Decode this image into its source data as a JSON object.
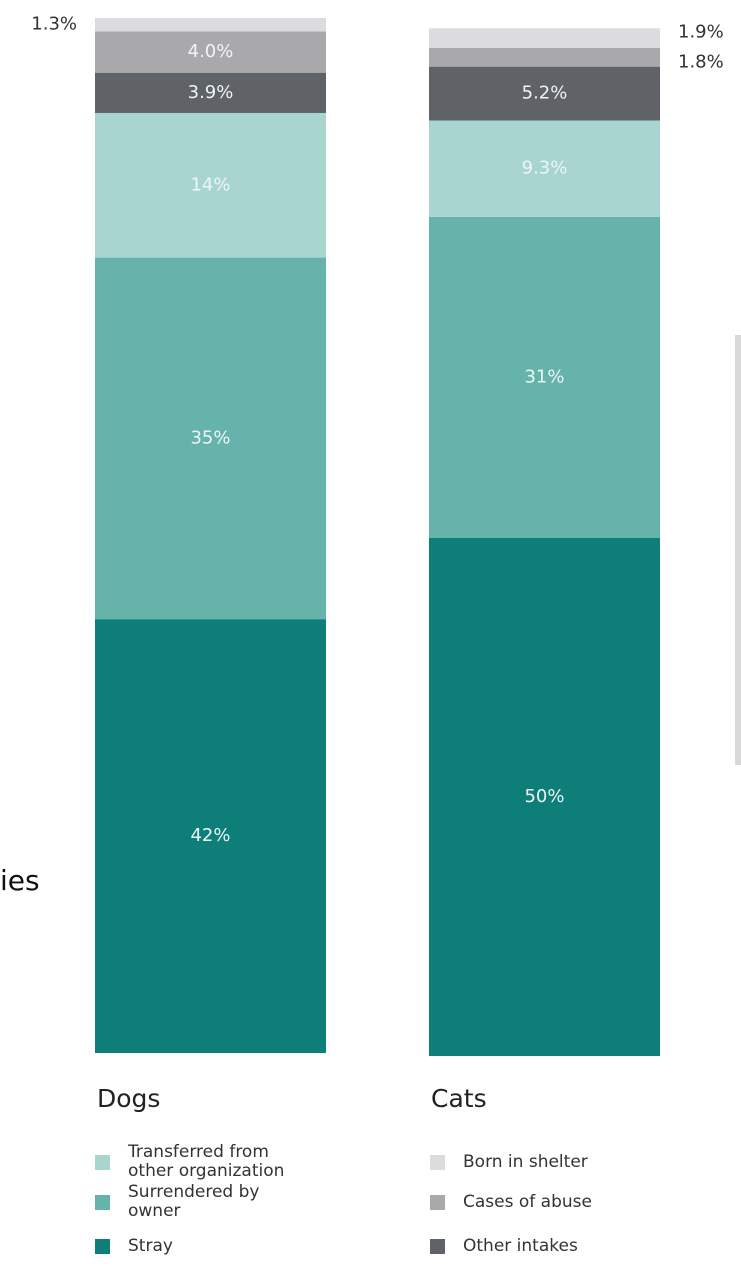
{
  "chart_data": {
    "type": "stacked-bar",
    "categories": [
      "Dogs",
      "Cats"
    ],
    "ylim": [
      0,
      100
    ],
    "series": [
      {
        "name": "Stray",
        "color": "#0e7f78",
        "values": [
          42,
          50
        ],
        "value_labels": [
          "42%",
          "50%"
        ]
      },
      {
        "name": "Surrendered by owner",
        "color": "#66b3ac",
        "values": [
          35,
          31
        ],
        "value_labels": [
          "35%",
          "31%"
        ]
      },
      {
        "name": "Transferred from other organization",
        "color": "#a9d5d1",
        "values": [
          14,
          9.3
        ],
        "value_labels": [
          "14%",
          "9.3%"
        ]
      },
      {
        "name": "Other intakes",
        "color": "#5f6266",
        "values": [
          3.9,
          5.2
        ],
        "value_labels": [
          "3.9%",
          "5.2%"
        ]
      },
      {
        "name": "Cases of abuse",
        "color": "#a9a9ab",
        "values": [
          4,
          1.8
        ],
        "value_labels": [
          "4.0%",
          "1.8%"
        ]
      },
      {
        "name": "Born in shelter",
        "color": "#dcdcde",
        "values": [
          1.3,
          1.9
        ],
        "value_labels": [
          "1.3%",
          "1.9%"
        ]
      }
    ]
  },
  "background_text": "ies"
}
